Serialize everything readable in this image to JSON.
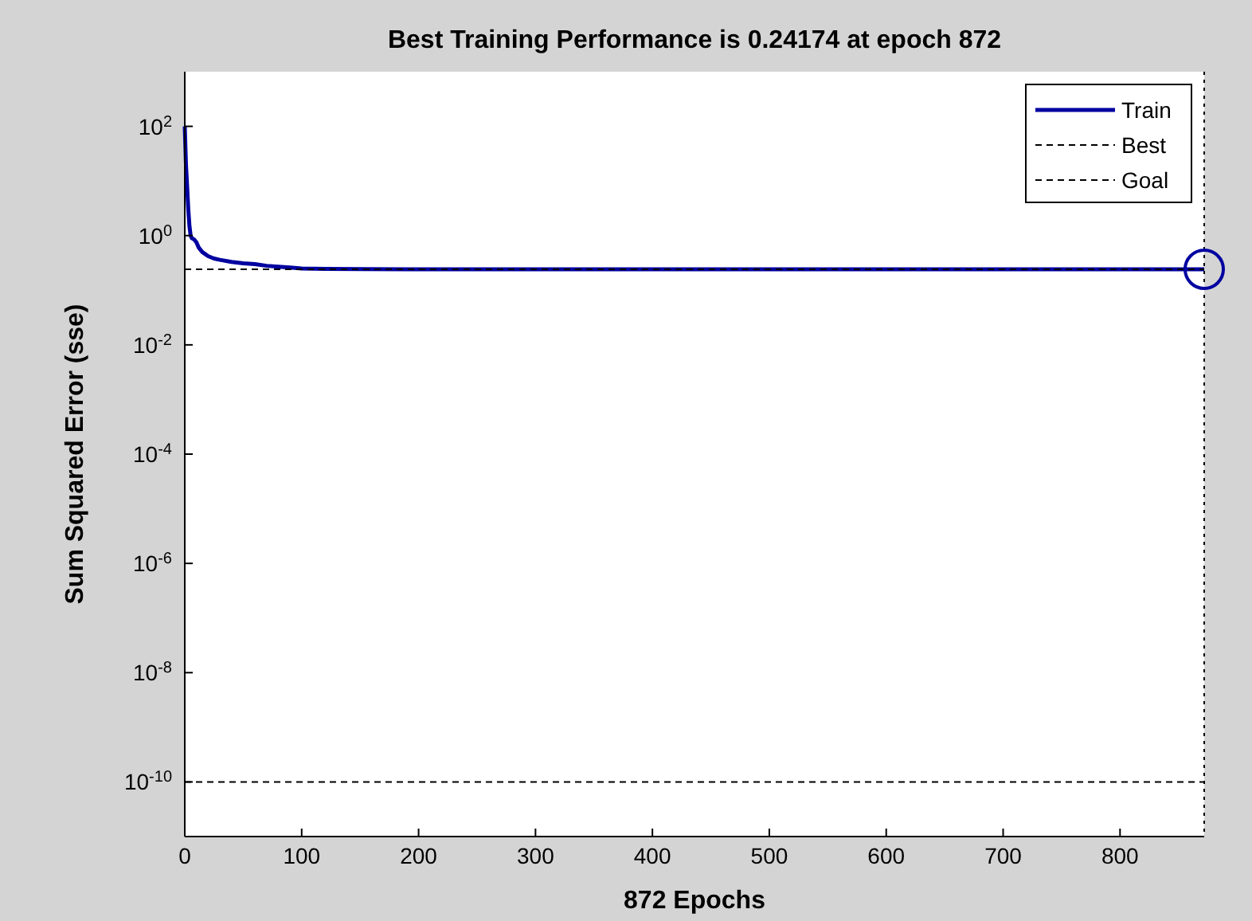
{
  "chart_data": {
    "type": "line",
    "title": "Best Training Performance is 0.24174 at epoch 872",
    "xlabel": "872 Epochs",
    "ylabel": "Sum Squared Error  (sse)",
    "log": "y",
    "xlim": [
      0,
      872
    ],
    "ylim": [
      1e-11,
      1000
    ],
    "xticks": [
      0,
      100,
      200,
      300,
      400,
      500,
      600,
      700,
      800
    ],
    "yticks": [
      {
        "value": 100,
        "label": "10$^{2}$"
      },
      {
        "value": 1,
        "label": "10$^{0}$"
      },
      {
        "value": 0.01,
        "label": "10$^{-2}$"
      },
      {
        "value": 0.0001,
        "label": "10$^{-4}$"
      },
      {
        "value": 1e-06,
        "label": "10$^{-6}$"
      },
      {
        "value": 1e-08,
        "label": "10$^{-8}$"
      },
      {
        "value": 1e-10,
        "label": "10$^{-10}$"
      }
    ],
    "grid": false,
    "legend": "top right",
    "series": [
      {
        "name": "Train",
        "color": "#0000a0",
        "line_style": "solid",
        "x": [
          0,
          1,
          2,
          3,
          4,
          5,
          6,
          8,
          10,
          12,
          15,
          20,
          25,
          30,
          40,
          50,
          60,
          70,
          80,
          90,
          100,
          120,
          150,
          200,
          300,
          500,
          700,
          872
        ],
        "values": [
          100,
          20,
          8,
          3,
          1.5,
          1,
          0.9,
          0.85,
          0.75,
          0.6,
          0.5,
          0.42,
          0.38,
          0.36,
          0.33,
          0.31,
          0.3,
          0.28,
          0.27,
          0.26,
          0.25,
          0.245,
          0.243,
          0.242,
          0.2418,
          0.2418,
          0.2418,
          0.24174
        ]
      },
      {
        "name": "Best",
        "color": "#000000",
        "line_style": "dashed",
        "x": [
          0,
          872
        ],
        "values": [
          0.24174,
          0.24174
        ]
      },
      {
        "name": "Goal",
        "color": "#000000",
        "line_style": "dashed",
        "x": [
          0,
          872
        ],
        "values": [
          1e-10,
          1e-10
        ]
      },
      {
        "type": "scatter",
        "marker": "circle",
        "color": "#0000a0",
        "x": [
          872
        ],
        "values": [
          0.24174
        ]
      }
    ],
    "ref_lines": [
      {
        "axis": "x",
        "value": 872,
        "color": "#000000",
        "line_style": "dotted"
      }
    ]
  }
}
